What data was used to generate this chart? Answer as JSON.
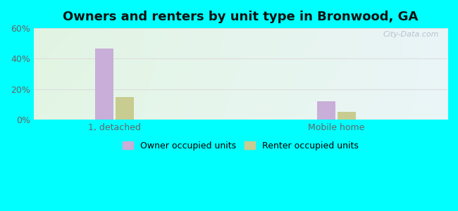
{
  "title": "Owners and renters by unit type in Bronwood, GA",
  "categories": [
    "1, detached",
    "Mobile home"
  ],
  "owner_values": [
    46.5,
    12.0
  ],
  "renter_values": [
    15.0,
    5.0
  ],
  "owner_color": "#c8aed8",
  "renter_color": "#c8cc90",
  "ylim": [
    0,
    60
  ],
  "yticks": [
    0,
    20,
    40,
    60
  ],
  "ytick_labels": [
    "0%",
    "20%",
    "40%",
    "60%"
  ],
  "bar_width": 0.18,
  "title_fontsize": 13,
  "tick_fontsize": 9,
  "legend_fontsize": 9,
  "outer_bg": "#00ffff",
  "grid_color": "#dddddd",
  "watermark": "City-Data.com"
}
